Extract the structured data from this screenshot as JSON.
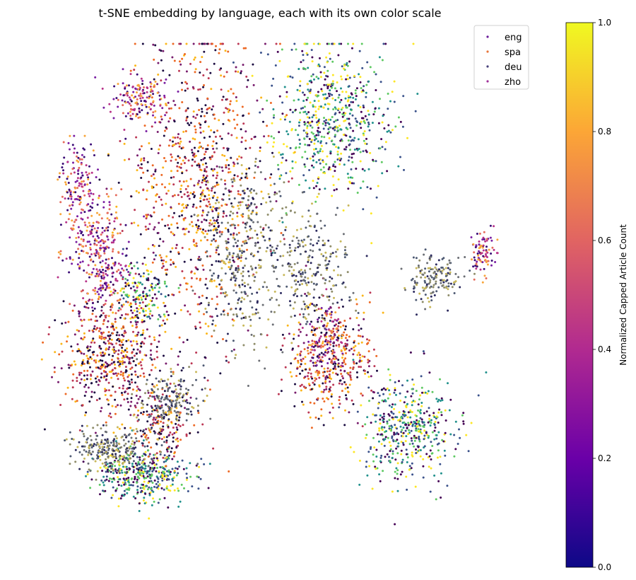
{
  "chart_data": {
    "type": "scatter",
    "title": "t-SNE embedding by language, each with its own color scale",
    "axes_visible": false,
    "legend": {
      "placement": "top-right",
      "entries": [
        {
          "name": "eng",
          "color": "#6a1b9a"
        },
        {
          "name": "spa",
          "color": "#e8753a"
        },
        {
          "name": "deu",
          "color": "#46407a"
        },
        {
          "name": "zho",
          "color": "#a0309a"
        }
      ]
    },
    "colorbar": {
      "label": "Normalized Capped Article Count",
      "range": [
        0.0,
        1.0
      ],
      "ticks": [
        "0.0",
        "0.2",
        "0.4",
        "0.6",
        "0.8",
        "1.0"
      ],
      "colormap": "plasma",
      "colors": [
        "#0d0887",
        "#6a00a8",
        "#b12a90",
        "#e16462",
        "#fca636",
        "#f0f921"
      ]
    },
    "series": [
      {
        "name": "eng",
        "palette": [
          "#440154",
          "#3b528b",
          "#21918c",
          "#5ec962",
          "#fde725"
        ],
        "clusters": [
          {
            "cx": 0.23,
            "cy": 0.86,
            "sx": 0.048,
            "sy": 0.028,
            "n": 420
          },
          {
            "cx": 0.23,
            "cy": 0.5,
            "sx": 0.03,
            "sy": 0.03,
            "n": 160
          },
          {
            "cx": 0.62,
            "cy": 0.15,
            "sx": 0.06,
            "sy": 0.075,
            "n": 650
          },
          {
            "cx": 0.78,
            "cy": 0.77,
            "sx": 0.05,
            "sy": 0.05,
            "n": 460
          }
        ]
      },
      {
        "name": "spa",
        "palette": [
          "#1b0c41",
          "#781c6d",
          "#bc3754",
          "#ed6925",
          "#fbb61a"
        ],
        "clusters": [
          {
            "cx": 0.17,
            "cy": 0.62,
            "sx": 0.05,
            "sy": 0.06,
            "n": 560
          },
          {
            "cx": 0.35,
            "cy": 0.28,
            "sx": 0.07,
            "sy": 0.15,
            "n": 900
          },
          {
            "cx": 0.62,
            "cy": 0.63,
            "sx": 0.045,
            "sy": 0.055,
            "n": 420
          },
          {
            "cx": 0.28,
            "cy": 0.76,
            "sx": 0.03,
            "sy": 0.04,
            "n": 180
          }
        ]
      },
      {
        "name": "deu",
        "palette": [
          "#2c2a5e",
          "#4e5a73",
          "#6b6e74",
          "#8f8d6a",
          "#c8b85a"
        ],
        "clusters": [
          {
            "cx": 0.17,
            "cy": 0.81,
            "sx": 0.04,
            "sy": 0.02,
            "n": 260
          },
          {
            "cx": 0.29,
            "cy": 0.71,
            "sx": 0.03,
            "sy": 0.03,
            "n": 180
          },
          {
            "cx": 0.44,
            "cy": 0.42,
            "sx": 0.04,
            "sy": 0.09,
            "n": 380
          },
          {
            "cx": 0.58,
            "cy": 0.44,
            "sx": 0.04,
            "sy": 0.06,
            "n": 260
          },
          {
            "cx": 0.83,
            "cy": 0.47,
            "sx": 0.03,
            "sy": 0.025,
            "n": 160
          }
        ]
      },
      {
        "name": "zho",
        "palette": [
          "#3a0a75",
          "#7a1fa2",
          "#b83289",
          "#e56b5d",
          "#f8a53a"
        ],
        "clusters": [
          {
            "cx": 0.15,
            "cy": 0.42,
            "sx": 0.03,
            "sy": 0.06,
            "n": 300
          },
          {
            "cx": 0.1,
            "cy": 0.3,
            "sx": 0.018,
            "sy": 0.06,
            "n": 170
          },
          {
            "cx": 0.23,
            "cy": 0.11,
            "sx": 0.03,
            "sy": 0.025,
            "n": 150
          },
          {
            "cx": 0.61,
            "cy": 0.59,
            "sx": 0.02,
            "sy": 0.035,
            "n": 110
          },
          {
            "cx": 0.93,
            "cy": 0.42,
            "sx": 0.012,
            "sy": 0.025,
            "n": 90
          }
        ]
      }
    ]
  }
}
